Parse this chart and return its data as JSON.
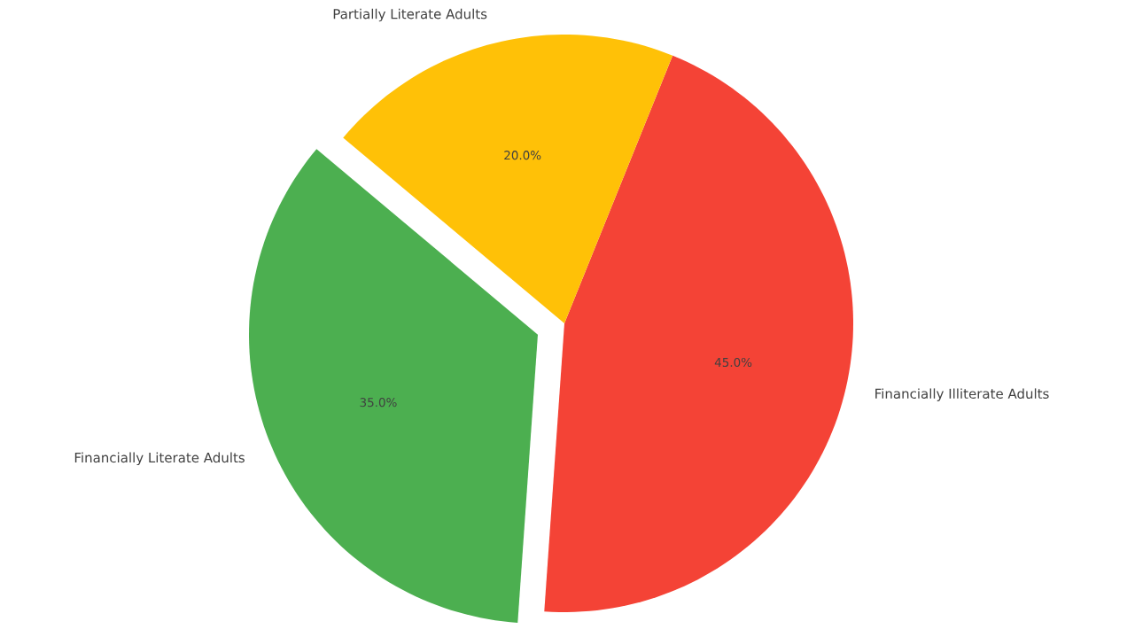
{
  "chart_data": {
    "type": "pie",
    "categories": [
      "Financially Literate Adults",
      "Financially Illiterate Adults",
      "Partially Literate Adults"
    ],
    "values": [
      35,
      45,
      20
    ],
    "colors": [
      "#4caf50",
      "#f44336",
      "#ffc107"
    ],
    "value_labels": [
      "35.0%",
      "45.0%",
      "20.0%"
    ]
  }
}
